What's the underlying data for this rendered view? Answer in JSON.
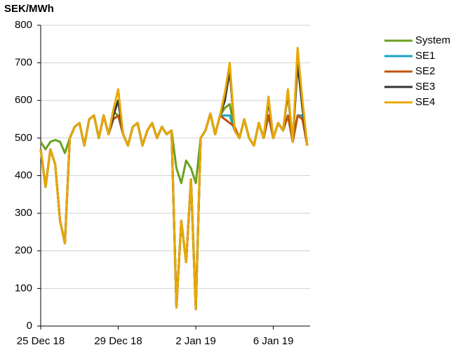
{
  "chart_data": {
    "type": "line",
    "y_label": "SEK/MWh",
    "categories": [
      "25 Dec 18",
      null,
      null,
      null,
      null,
      null,
      null,
      null,
      null,
      null,
      null,
      null,
      null,
      null,
      null,
      null,
      "29 Dec 18",
      null,
      null,
      null,
      null,
      null,
      null,
      null,
      null,
      null,
      null,
      null,
      null,
      null,
      null,
      null,
      "2 Jan 19",
      null,
      null,
      null,
      null,
      null,
      null,
      null,
      null,
      null,
      null,
      null,
      null,
      null,
      null,
      null,
      "6 Jan 19",
      null,
      null,
      null,
      null,
      null,
      null,
      null
    ],
    "series": [
      {
        "name": "System",
        "color": "#6aa121",
        "values": [
          490,
          470,
          490,
          495,
          490,
          460,
          500,
          530,
          540,
          480,
          550,
          560,
          500,
          560,
          510,
          570,
          560,
          510,
          480,
          530,
          540,
          480,
          520,
          540,
          500,
          530,
          510,
          520,
          420,
          380,
          440,
          420,
          380,
          500,
          520,
          565,
          510,
          560,
          580,
          590,
          520,
          500,
          550,
          500,
          480,
          540,
          500,
          560,
          500,
          540,
          520,
          560,
          490,
          560,
          560,
          480
        ]
      },
      {
        "name": "SE1",
        "color": "#1aa3c4",
        "values": [
          470,
          370,
          470,
          430,
          280,
          220,
          500,
          530,
          540,
          480,
          550,
          560,
          500,
          560,
          510,
          550,
          560,
          510,
          480,
          530,
          540,
          480,
          520,
          540,
          500,
          530,
          510,
          520,
          50,
          280,
          170,
          390,
          45,
          500,
          520,
          565,
          510,
          560,
          560,
          560,
          520,
          500,
          550,
          500,
          480,
          540,
          500,
          560,
          500,
          540,
          520,
          560,
          490,
          560,
          560,
          480
        ]
      },
      {
        "name": "SE2",
        "color": "#c0550a",
        "values": [
          470,
          370,
          470,
          430,
          280,
          220,
          500,
          530,
          540,
          480,
          550,
          560,
          500,
          560,
          510,
          550,
          560,
          510,
          480,
          530,
          540,
          480,
          520,
          540,
          500,
          530,
          510,
          520,
          50,
          280,
          170,
          390,
          45,
          500,
          520,
          565,
          510,
          560,
          550,
          540,
          530,
          500,
          550,
          500,
          480,
          540,
          500,
          560,
          500,
          540,
          520,
          560,
          490,
          560,
          550,
          480
        ]
      },
      {
        "name": "SE3",
        "color": "#333333",
        "values": [
          470,
          370,
          470,
          430,
          280,
          220,
          500,
          530,
          540,
          480,
          550,
          560,
          500,
          560,
          510,
          560,
          600,
          510,
          480,
          530,
          540,
          480,
          520,
          540,
          500,
          530,
          510,
          520,
          50,
          280,
          170,
          390,
          45,
          500,
          520,
          565,
          510,
          560,
          600,
          680,
          520,
          500,
          550,
          500,
          480,
          540,
          500,
          600,
          500,
          540,
          520,
          620,
          490,
          700,
          580,
          480
        ]
      },
      {
        "name": "SE4",
        "color": "#e8a800",
        "values": [
          470,
          370,
          470,
          430,
          280,
          220,
          500,
          530,
          540,
          480,
          550,
          560,
          500,
          560,
          510,
          575,
          630,
          510,
          480,
          530,
          540,
          480,
          520,
          540,
          500,
          530,
          510,
          520,
          50,
          280,
          170,
          390,
          45,
          500,
          520,
          565,
          510,
          560,
          620,
          700,
          520,
          500,
          550,
          500,
          480,
          540,
          500,
          610,
          500,
          540,
          520,
          630,
          490,
          740,
          600,
          480
        ]
      }
    ],
    "ylim": [
      0,
      800
    ],
    "yticks": [
      0,
      100,
      200,
      300,
      400,
      500,
      600,
      700,
      800
    ],
    "grid": true,
    "legend": "right"
  }
}
